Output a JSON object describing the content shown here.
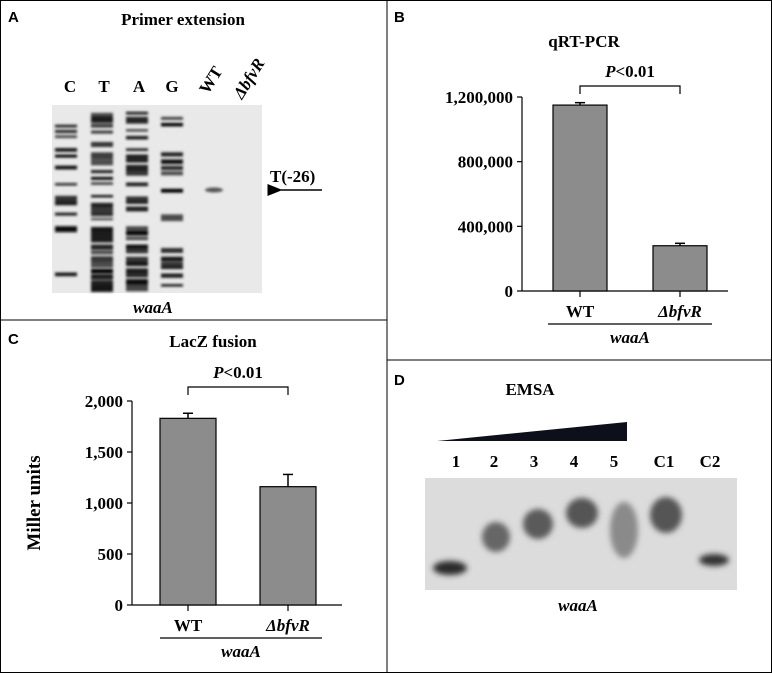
{
  "panels": {
    "A": {
      "letter": "A",
      "title": "Primer extension",
      "lanes": [
        "C",
        "T",
        "A",
        "G"
      ],
      "sample_lanes": [
        "WT",
        "ΔbfvR"
      ],
      "arrow_label": "T(-26)",
      "gene": "waaA"
    },
    "B": {
      "letter": "B",
      "title": "qRT-PCR",
      "gene": "waaA"
    },
    "C": {
      "letter": "C",
      "title": "LacZ fusion",
      "gene": "waaA"
    },
    "D": {
      "letter": "D",
      "title": "EMSA",
      "lanes": [
        "1",
        "2",
        "3",
        "4",
        "5",
        "C1",
        "C2"
      ],
      "gene": "waaA"
    }
  },
  "chart_data": [
    {
      "panel": "B",
      "type": "bar",
      "title": "qRT-PCR",
      "categories": [
        "WT",
        "ΔbfvR"
      ],
      "values": [
        1150000,
        280000
      ],
      "errors": [
        15000,
        15000
      ],
      "ylim": [
        0,
        1200000
      ],
      "yticks": [
        0,
        400000,
        800000,
        1200000
      ],
      "ytick_labels": [
        "0",
        "400,000",
        "800,000",
        "1,200,000"
      ],
      "ylabel": "",
      "xlabel": "waaA",
      "significance": {
        "p": "P",
        "rest": "<0.01"
      },
      "bar_color": "#8c8c8c",
      "grid": false
    },
    {
      "panel": "C",
      "type": "bar",
      "title": "LacZ fusion",
      "categories": [
        "WT",
        "ΔbfvR"
      ],
      "values": [
        1830,
        1160
      ],
      "errors": [
        50,
        120
      ],
      "ylim": [
        0,
        2000
      ],
      "yticks": [
        0,
        500,
        1000,
        1500,
        2000
      ],
      "ytick_labels": [
        "0",
        "500",
        "1,000",
        "1,500",
        "2,000"
      ],
      "ylabel": "Miller units",
      "xlabel": "waaA",
      "significance": {
        "p": "P",
        "rest": "<0.01"
      },
      "bar_color": "#8c8c8c",
      "grid": false
    }
  ]
}
